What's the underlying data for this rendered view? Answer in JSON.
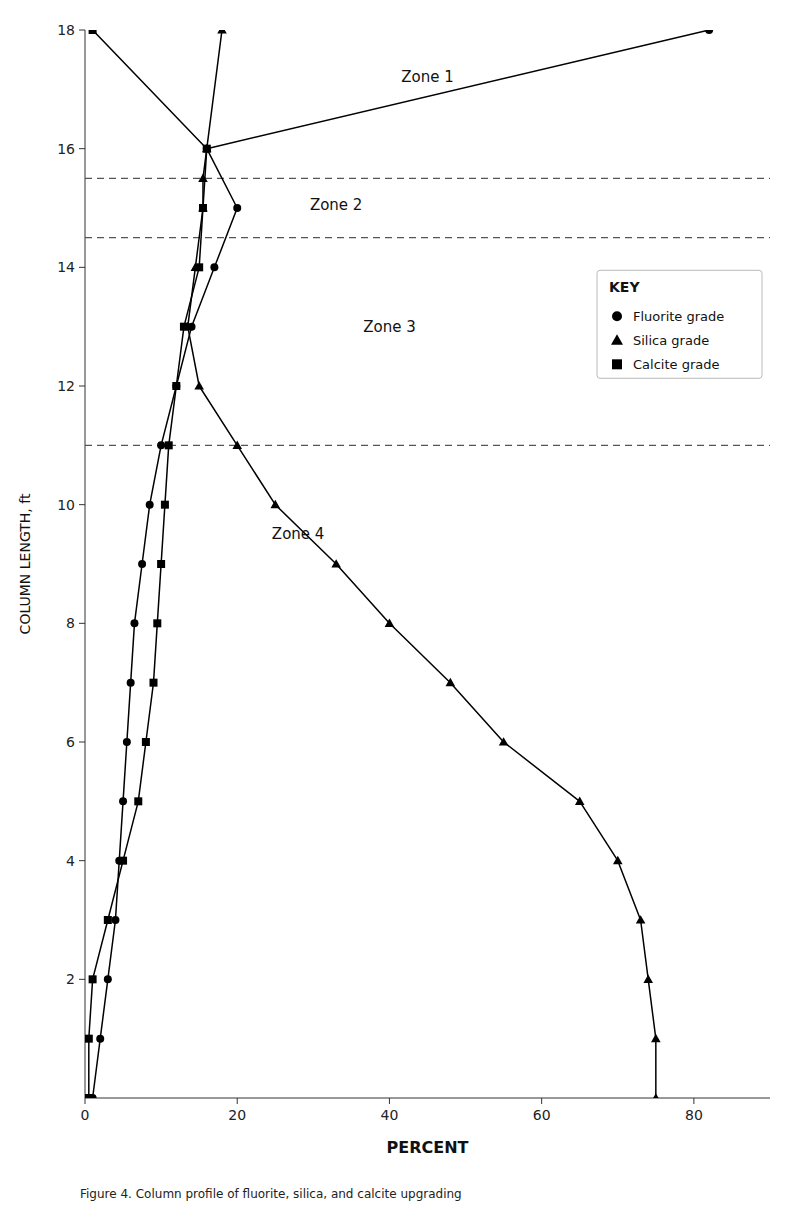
{
  "chart_data": {
    "type": "line",
    "x_label": "PERCENT",
    "y_label": "COLUMN LENGTH, ft",
    "caption": "Figure 4.  Column profile of fluorite, silica, and calcite upgrading",
    "legend_title": "KEY",
    "legend": "right",
    "grid": false,
    "xlim": [
      0,
      90
    ],
    "ylim": [
      0,
      18
    ],
    "xticks": [
      0,
      20,
      40,
      60,
      80
    ],
    "yticks": [
      2,
      4,
      6,
      8,
      10,
      12,
      14,
      16,
      18
    ],
    "series": [
      {
        "name": "Fluorite grade",
        "color": "#000000",
        "marker": "circle",
        "line_style": "solid",
        "x": [
          1.0,
          2.0,
          3.0,
          4.0,
          4.5,
          5.0,
          5.5,
          6.0,
          6.5,
          7.5,
          8.5,
          10.0,
          12.0,
          14.0,
          17.0,
          20.0,
          16.0,
          82.0
        ],
        "values": [
          0,
          1,
          2,
          3,
          4,
          5,
          6,
          7,
          8,
          9,
          10,
          11,
          12,
          13,
          14,
          15,
          16,
          18
        ]
      },
      {
        "name": "Silica grade",
        "color": "#000000",
        "marker": "triangle",
        "line_style": "solid",
        "x": [
          75.0,
          75.0,
          74.0,
          73.0,
          70.0,
          65.0,
          55.0,
          48.0,
          40.0,
          33.0,
          25.0,
          20.0,
          15.0,
          13.5,
          14.5,
          15.5,
          15.5,
          16.0,
          18.0
        ],
        "values": [
          0,
          1,
          2,
          3,
          4,
          5,
          6,
          7,
          8,
          9,
          10,
          11,
          12,
          13,
          14,
          15,
          15.5,
          16,
          18
        ]
      },
      {
        "name": "Calcite grade",
        "color": "#000000",
        "marker": "square",
        "line_style": "solid",
        "x": [
          0.5,
          0.5,
          1.0,
          3.0,
          5.0,
          7.0,
          8.0,
          9.0,
          9.5,
          10.0,
          10.5,
          11.0,
          12.0,
          13.0,
          15.0,
          15.5,
          16.0,
          1.0
        ],
        "values": [
          0,
          1,
          2,
          3,
          4,
          5,
          6,
          7,
          8,
          9,
          10,
          11,
          12,
          13,
          14,
          15,
          16,
          18
        ]
      }
    ],
    "hlines": [
      15.5,
      14.5,
      11.0
    ],
    "annotations": [
      {
        "text": "Zone 1",
        "x": 45,
        "y": 17.2
      },
      {
        "text": "Zone 2",
        "x": 33,
        "y": 15.05
      },
      {
        "text": "Zone 3",
        "x": 40,
        "y": 13.0
      },
      {
        "text": "Zone 4",
        "x": 28,
        "y": 9.5
      }
    ]
  }
}
